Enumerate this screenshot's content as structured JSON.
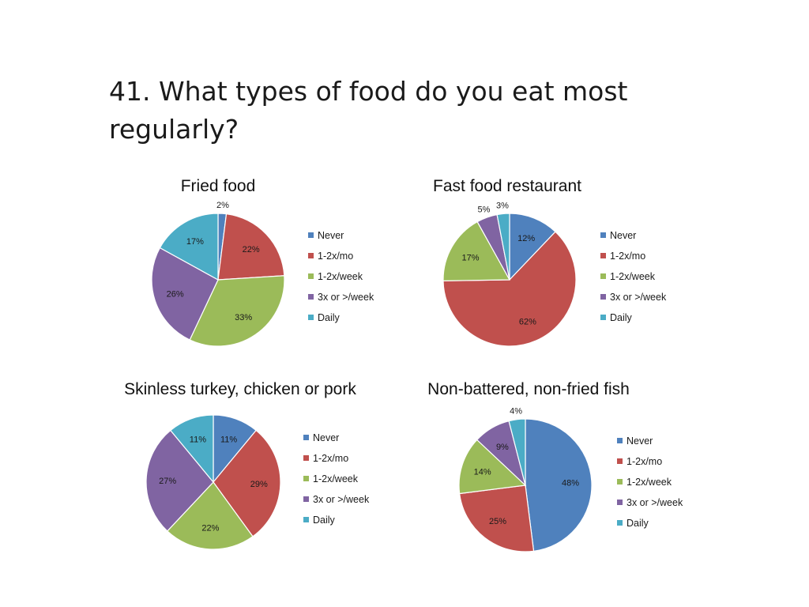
{
  "slide": {
    "title": "41. What types of food do you eat most regularly?"
  },
  "colors": {
    "Never": "#4F81BD",
    "1-2x/mo": "#C0504D",
    "1-2x/week": "#9BBB59",
    "3x or >/week": "#8064A2",
    "Daily": "#4BACC6"
  },
  "chart_data": [
    {
      "type": "pie",
      "title": "Fried food",
      "categories": [
        "Never",
        "1-2x/mo",
        "1-2x/week",
        "3x or >/week",
        "Daily"
      ],
      "values": [
        2,
        22,
        33,
        26,
        17
      ],
      "labels": [
        "2%",
        "22%",
        "33%",
        "26%",
        "17%"
      ],
      "legend": [
        "Never",
        "1-2x/mo",
        "1-2x/week",
        "3x or >/week",
        "Daily"
      ],
      "legend_position": "right"
    },
    {
      "type": "pie",
      "title": "Fast food restaurant",
      "categories": [
        "Never",
        "1-2x/mo",
        "1-2x/week",
        "3x or >/week",
        "Daily"
      ],
      "values": [
        12,
        62,
        17,
        5,
        3
      ],
      "labels": [
        "12%",
        "62%",
        "17%",
        "5%",
        "3%"
      ],
      "legend": [
        "Never",
        "1-2x/mo",
        "1-2x/week",
        "3x or >/week",
        "Daily"
      ],
      "legend_position": "right"
    },
    {
      "type": "pie",
      "title": "Skinless turkey, chicken or pork",
      "categories": [
        "Never",
        "1-2x/mo",
        "1-2x/week",
        "3x or >/week",
        "Daily"
      ],
      "values": [
        11,
        29,
        22,
        27,
        11
      ],
      "labels": [
        "11%",
        "29%",
        "22%",
        "27%",
        "11%"
      ],
      "legend": [
        "Never",
        "1-2x/mo",
        "1-2x/week",
        "3x or >/week",
        "Daily"
      ],
      "legend_position": "right"
    },
    {
      "type": "pie",
      "title": "Non-battered, non-fried fish",
      "categories": [
        "Never",
        "1-2x/mo",
        "1-2x/week",
        "3x or >/week",
        "Daily"
      ],
      "values": [
        48,
        25,
        14,
        9,
        4
      ],
      "labels": [
        "48%",
        "25%",
        "14%",
        "9%",
        "4%"
      ],
      "legend": [
        "Never",
        "1-2x/mo",
        "1-2x/week",
        "3x or >/week",
        "Daily"
      ],
      "legend_position": "right"
    }
  ]
}
